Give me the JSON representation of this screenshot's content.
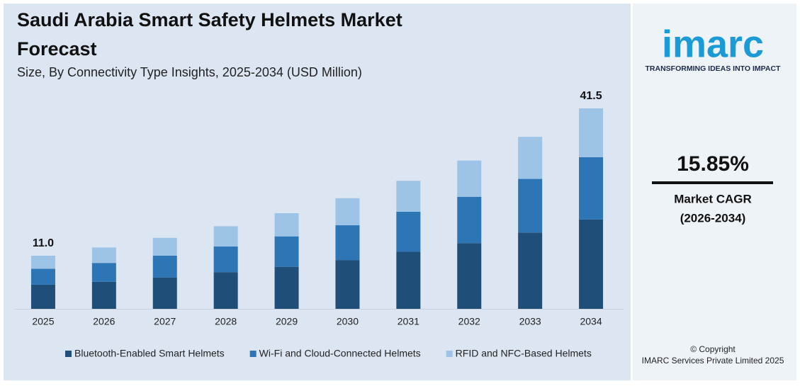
{
  "chart_data": {
    "type": "stacked-bar",
    "title": "Saudi Arabia Smart Safety Helmets Market Forecast",
    "subtitle": "Size, By Connectivity Type Insights, 2025-2034 (USD Million)",
    "categories": [
      "2025",
      "2026",
      "2027",
      "2028",
      "2029",
      "2030",
      "2031",
      "2032",
      "2033",
      "2034"
    ],
    "series": [
      {
        "name": "Bluetooth-Enabled Smart Helmets",
        "color": "#1f4e79",
        "values": [
          5.0,
          5.6,
          6.5,
          7.6,
          8.7,
          10.1,
          11.8,
          13.6,
          15.8,
          18.5
        ]
      },
      {
        "name": "Wi-Fi and Cloud-Connected Helmets",
        "color": "#2e75b6",
        "values": [
          3.3,
          3.9,
          4.5,
          5.3,
          6.3,
          7.2,
          8.3,
          9.6,
          11.1,
          12.9
        ]
      },
      {
        "name": "RFID and NFC-Based Helmets",
        "color": "#9dc3e6",
        "values": [
          2.7,
          3.2,
          3.7,
          4.2,
          4.8,
          5.6,
          6.4,
          7.5,
          8.7,
          10.1
        ]
      }
    ],
    "total_labels": [
      {
        "category": 0,
        "value": 11.0,
        "label": "11.0"
      },
      {
        "category": 9,
        "value": 41.5,
        "label": "41.5"
      }
    ],
    "legend": "bottom"
  },
  "branding": {
    "logo": "imarc",
    "tagline": "TRANSFORMING IDEAS INTO IMPACT",
    "cagr": {
      "value": "15.85%",
      "label": "Market CAGR",
      "period": "(2026-2034)"
    },
    "copyright": "© Copyright",
    "owner": "IMARC Services Private Limited 2025"
  }
}
